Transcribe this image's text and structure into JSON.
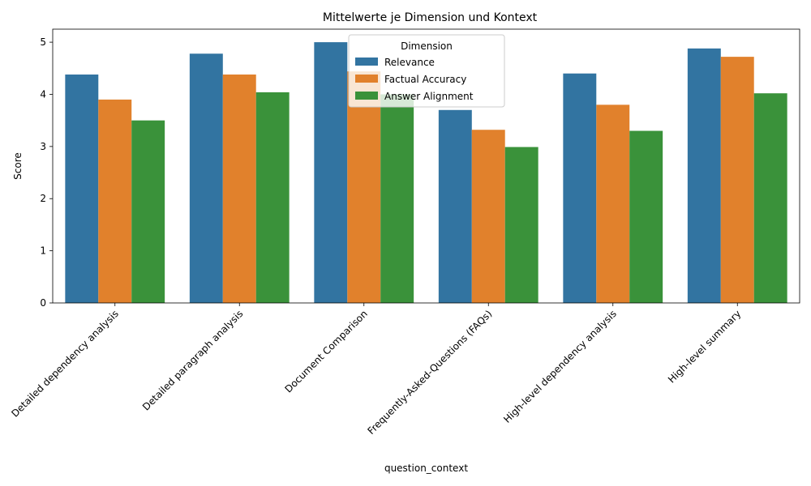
{
  "chart_data": {
    "type": "bar",
    "title": "Mittelwerte je Dimension und Kontext",
    "xlabel": "question_context",
    "ylabel": "Score",
    "ylim": [
      0,
      5.25
    ],
    "yticks": [
      0,
      1,
      2,
      3,
      4,
      5
    ],
    "categories": [
      "Detailed dependency analysis",
      "Detailed paragraph analysis",
      "Document Comparison",
      "Frequently-Asked-Questions (FAQs)",
      "High-level dependency analysis",
      "High-level summary"
    ],
    "series": [
      {
        "name": "Relevance",
        "color": "#3274a1",
        "values": [
          4.38,
          4.78,
          5.0,
          3.7,
          4.4,
          4.88
        ]
      },
      {
        "name": "Factual Accuracy",
        "color": "#e1812c",
        "values": [
          3.9,
          4.38,
          4.44,
          3.32,
          3.8,
          4.72
        ]
      },
      {
        "name": "Answer Alignment",
        "color": "#3a923a",
        "values": [
          3.5,
          4.04,
          4.0,
          2.99,
          3.3,
          4.02
        ]
      }
    ],
    "legend": {
      "title": "Dimension",
      "position": "top-center"
    },
    "grid": false
  }
}
